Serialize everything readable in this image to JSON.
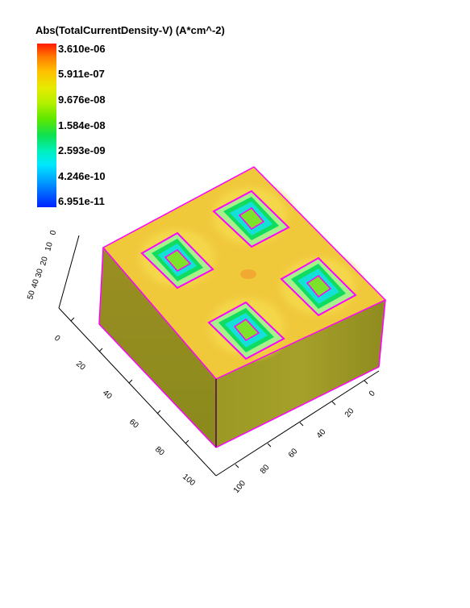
{
  "legend": {
    "title": "Abs(TotalCurrentDensity-V) (A*cm^-2)",
    "ticks": [
      "3.610e-06",
      "5.911e-07",
      "9.676e-08",
      "1.584e-08",
      "2.593e-09",
      "4.246e-10",
      "6.951e-11"
    ],
    "colors": [
      "#ff1a00",
      "#ff7a00",
      "#ffc000",
      "#e6ea00",
      "#b6f000",
      "#5ee800",
      "#10e050",
      "#00f0c0",
      "#00e8ff",
      "#0090ff",
      "#0020ff"
    ]
  },
  "axes": {
    "x_ticks": [
      "0",
      "20",
      "40",
      "60",
      "80",
      "100"
    ],
    "y_ticks": [
      "0",
      "20",
      "40",
      "60",
      "80",
      "100"
    ],
    "z_ticks": [
      "0",
      "10",
      "20",
      "30",
      "40",
      "50"
    ]
  },
  "colors": {
    "top_face": "#f0c93a",
    "front_face": "#a59f28",
    "side_face": "#8d8a1e",
    "edge": "#ff00ff",
    "cell_outer": "#a8f08a",
    "cell_ring": "#10dd60",
    "cell_core": "#15e0d8",
    "cell_center": "#7ce22a"
  }
}
